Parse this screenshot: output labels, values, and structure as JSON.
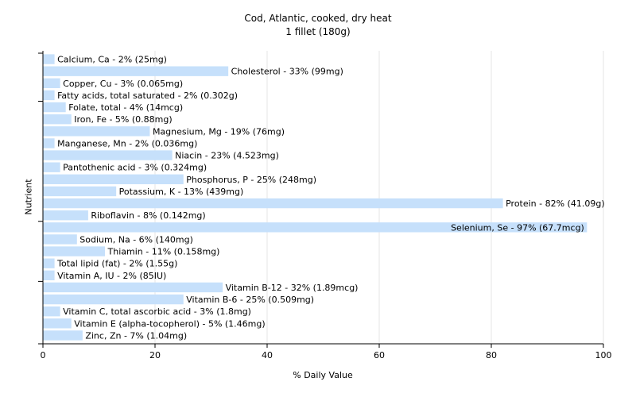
{
  "chart_data": {
    "type": "bar",
    "orientation": "horizontal",
    "title": "Cod, Atlantic, cooked, dry heat",
    "subtitle": "1 fillet (180g)",
    "xlabel": "% Daily Value",
    "ylabel": "Nutrient",
    "xlim": [
      0,
      100
    ],
    "xticks": [
      "0",
      "20",
      "40",
      "60",
      "80",
      "100"
    ],
    "grid": "vertical",
    "bar_color": "#c6e0fb",
    "categories": [
      "Calcium, Ca",
      "Cholesterol",
      "Copper, Cu",
      "Fatty acids, total saturated",
      "Folate, total",
      "Iron, Fe",
      "Magnesium, Mg",
      "Manganese, Mn",
      "Niacin",
      "Pantothenic acid",
      "Phosphorus, P",
      "Potassium, K",
      "Protein",
      "Riboflavin",
      "Selenium, Se",
      "Sodium, Na",
      "Thiamin",
      "Total lipid (fat)",
      "Vitamin A, IU",
      "Vitamin B-12",
      "Vitamin B-6",
      "Vitamin C, total ascorbic acid",
      "Vitamin E (alpha-tocopherol)",
      "Zinc, Zn"
    ],
    "values": [
      2,
      33,
      3,
      2,
      4,
      5,
      19,
      2,
      23,
      3,
      25,
      13,
      82,
      8,
      97,
      6,
      11,
      2,
      2,
      32,
      25,
      3,
      5,
      7
    ],
    "data_labels": [
      "Calcium, Ca - 2% (25mg)",
      "Cholesterol - 33% (99mg)",
      "Copper, Cu - 3% (0.065mg)",
      "Fatty acids, total saturated - 2% (0.302g)",
      "Folate, total - 4% (14mcg)",
      "Iron, Fe - 5% (0.88mg)",
      "Magnesium, Mg - 19% (76mg)",
      "Manganese, Mn - 2% (0.036mg)",
      "Niacin - 23% (4.523mg)",
      "Pantothenic acid - 3% (0.324mg)",
      "Phosphorus, P - 25% (248mg)",
      "Potassium, K - 13% (439mg)",
      "Protein - 82% (41.09g)",
      "Riboflavin - 8% (0.142mg)",
      "Selenium, Se - 97% (67.7mcg)",
      "Sodium, Na - 6% (140mg)",
      "Thiamin - 11% (0.158mg)",
      "Total lipid (fat) - 2% (1.55g)",
      "Vitamin A, IU - 2% (85IU)",
      "Vitamin B-12 - 32% (1.89mcg)",
      "Vitamin B-6 - 25% (0.509mg)",
      "Vitamin C, total ascorbic acid - 3% (1.8mg)",
      "Vitamin E (alpha-tocopherol) - 5% (1.46mg)",
      "Zinc, Zn - 7% (1.04mg)"
    ]
  }
}
